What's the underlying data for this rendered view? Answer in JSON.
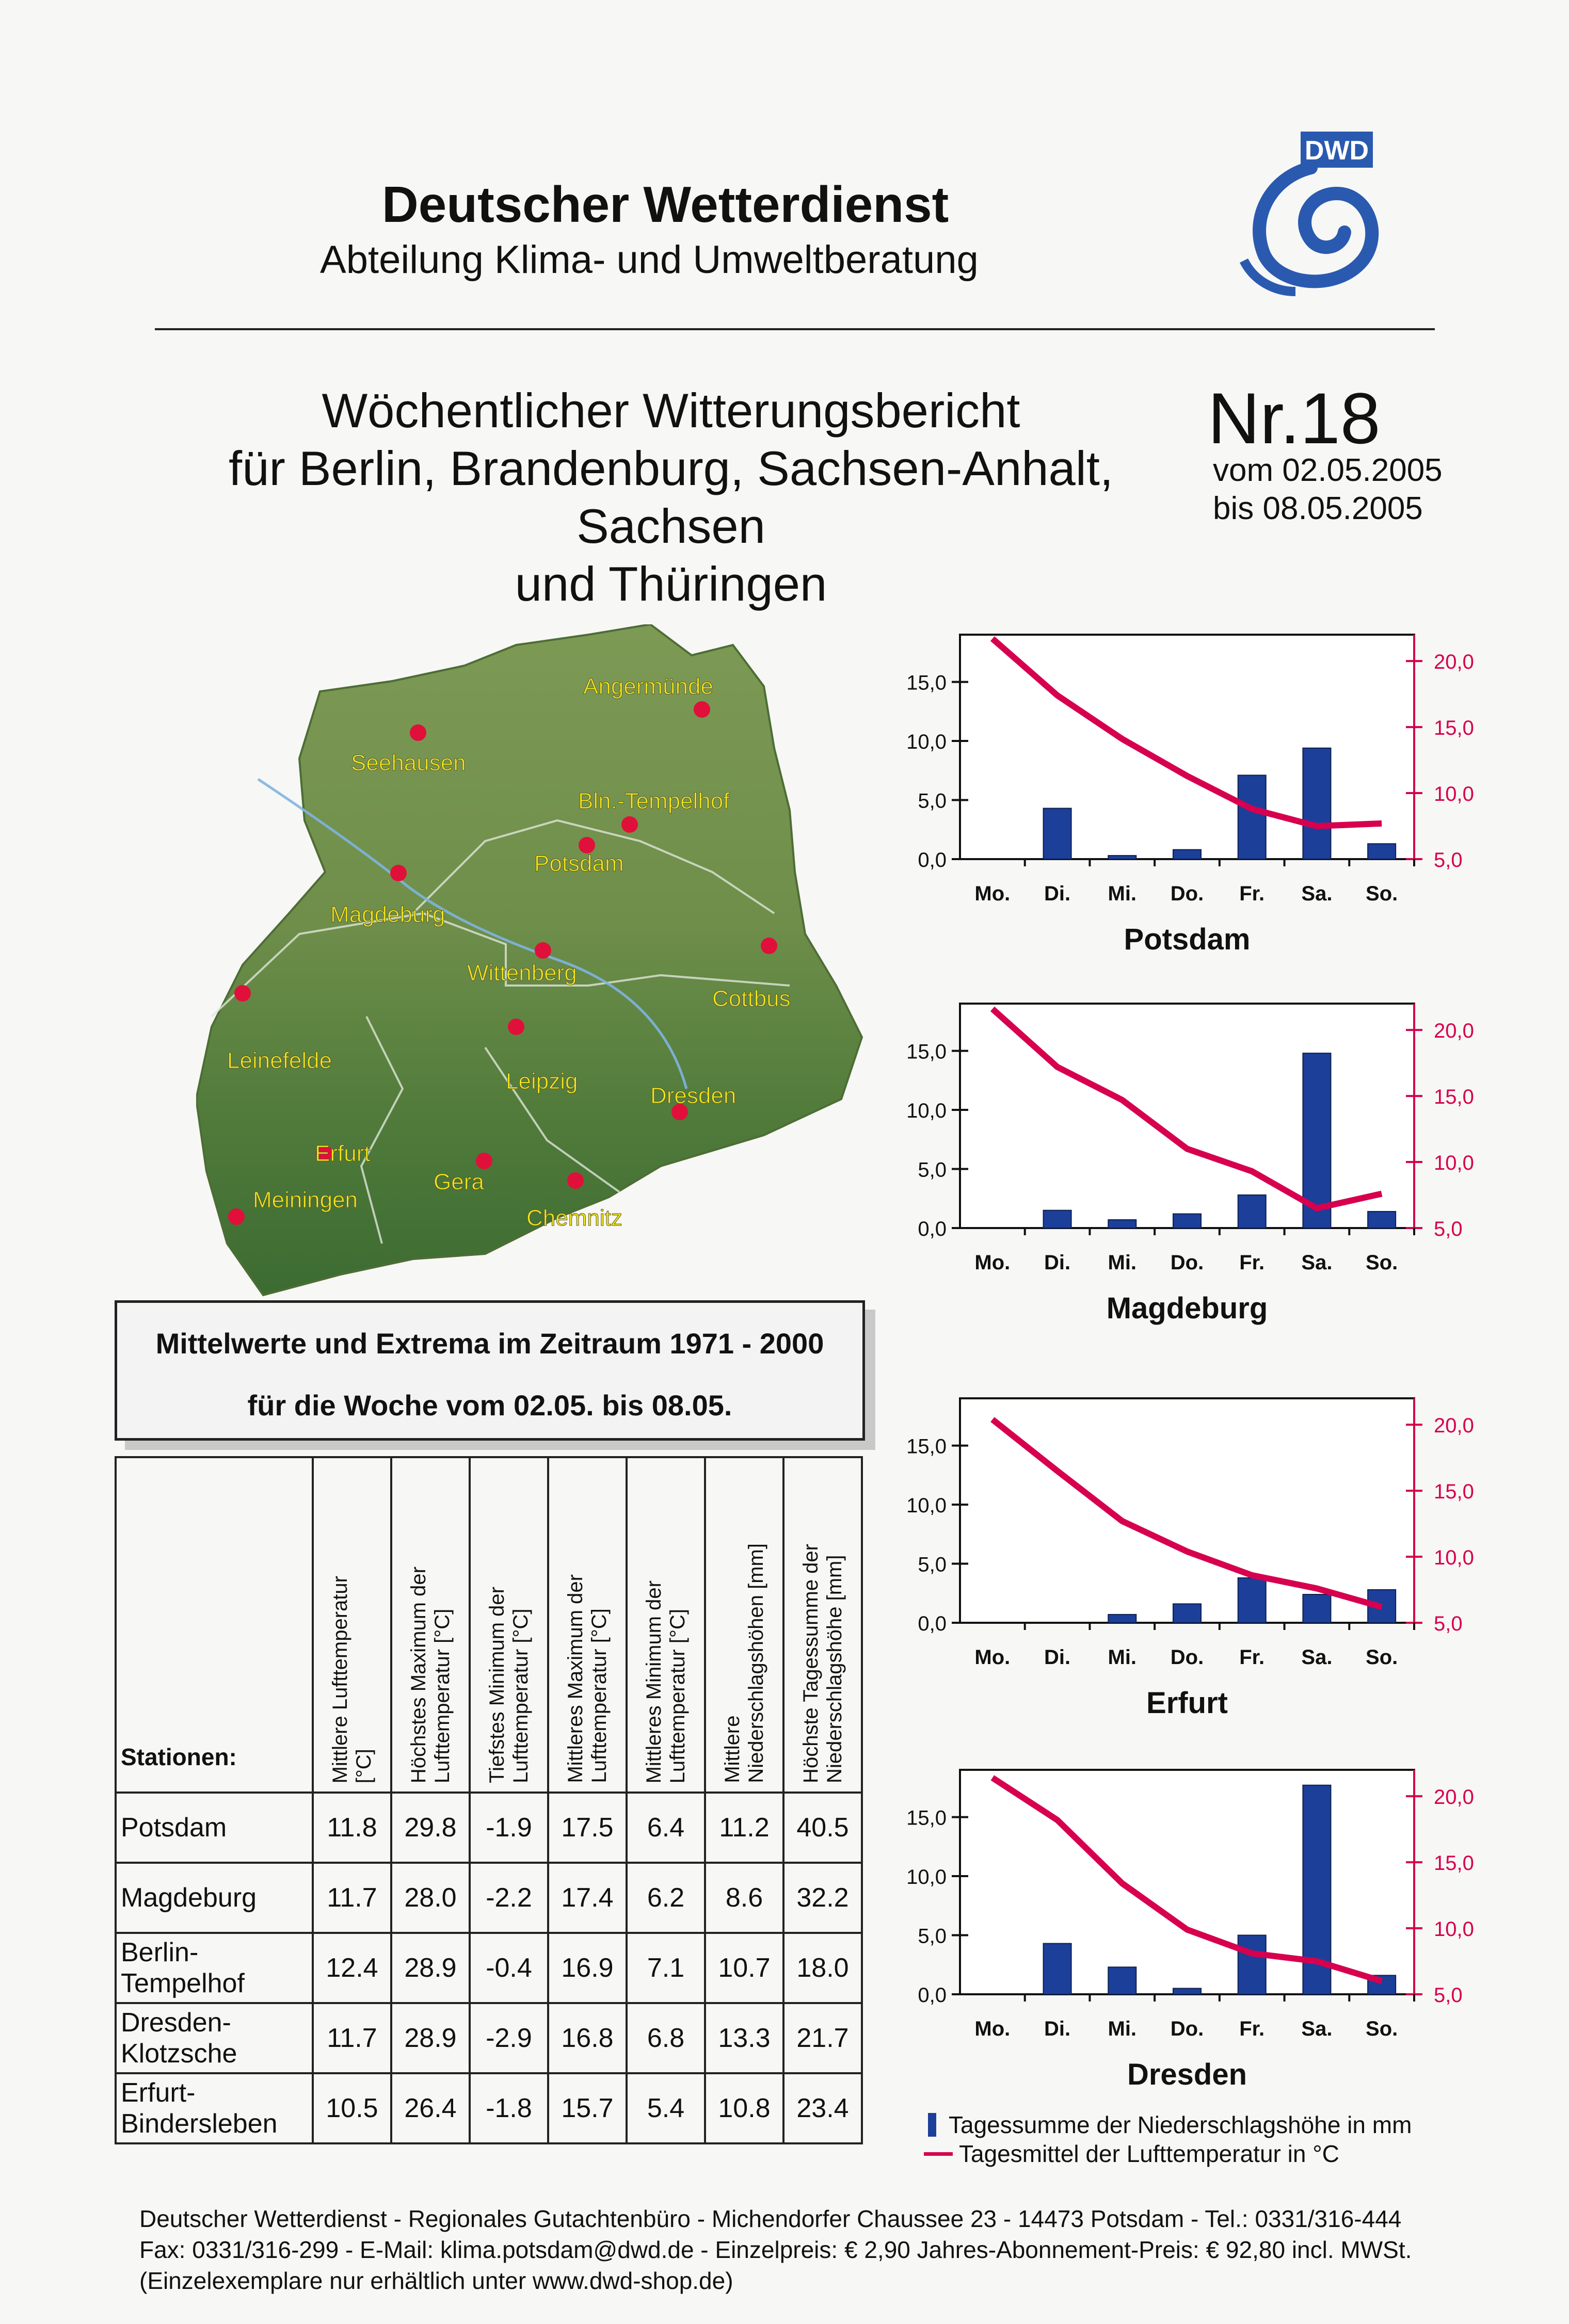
{
  "header": {
    "org": "Deutscher Wetterdienst",
    "department": "Abteilung Klima- und Umweltberatung",
    "logo_text": "DWD"
  },
  "report": {
    "title_line1": "Wöchentlicher Witterungsbericht",
    "title_line2": "für Berlin, Brandenburg, Sachsen-Anhalt, Sachsen",
    "title_line3": "und Thüringen",
    "number": "Nr.18",
    "date_from": "vom 02.05.2005",
    "date_to": "bis   08.05.2005"
  },
  "map": {
    "stations": [
      "Angermünde",
      "Seehausen",
      "Bln.-Tempelhof",
      "Potsdam",
      "Magdeburg",
      "Wittenberg",
      "Cottbus",
      "Leinefelde",
      "Leipzig",
      "Dresden",
      "Erfurt",
      "Gera",
      "Chemnitz",
      "Meiningen"
    ],
    "marker_color": "#e0103a",
    "label_color": "#f4e61a"
  },
  "stats": {
    "box_line1": "Mittelwerte und Extrema im Zeitraum 1971 - 2000",
    "box_line2": "für die Woche vom 02.05. bis 08.05.",
    "station_header": "Stationen:",
    "columns": [
      "Mittlere Lufttemperatur\n[°C]",
      "Höchstes Maximum der\nLufttemperatur [°C]",
      "Tiefstes Minimum der\nLufttemperatur [°C]",
      "Mittleres Maximum der\nLufttemperatur [°C]",
      "Mittleres Minimum der\nLufttemperatur [°C]",
      "Mittlere\nNiederschlagshöhen [mm]",
      "Höchste Tagessumme der\nNiederschlagshöhe [mm]"
    ],
    "rows": [
      {
        "station": "Potsdam",
        "values": [
          "11.8",
          "29.8",
          "-1.9",
          "17.5",
          "6.4",
          "11.2",
          "40.5"
        ]
      },
      {
        "station": "Magdeburg",
        "values": [
          "11.7",
          "28.0",
          "-2.2",
          "17.4",
          "6.2",
          "8.6",
          "32.2"
        ]
      },
      {
        "station": "Berlin-\nTempelhof",
        "values": [
          "12.4",
          "28.9",
          "-0.4",
          "16.9",
          "7.1",
          "10.7",
          "18.0"
        ]
      },
      {
        "station": "Dresden-\nKlotzsche",
        "values": [
          "11.7",
          "28.9",
          "-2.9",
          "16.8",
          "6.8",
          "13.3",
          "21.7"
        ]
      },
      {
        "station": "Erfurt-\nBindersleben",
        "values": [
          "10.5",
          "26.4",
          "-1.8",
          "15.7",
          "5.4",
          "10.8",
          "23.4"
        ]
      }
    ]
  },
  "chart_data": [
    {
      "type": "bar",
      "title": "Potsdam",
      "categories": [
        "Mo.",
        "Di.",
        "Mi.",
        "Do.",
        "Fr.",
        "Sa.",
        "So."
      ],
      "left_ticks": [
        "15,0",
        "10,0",
        "5,0",
        "0,0"
      ],
      "right_ticks": [
        "20,0",
        "15,0",
        "10,0",
        "5,0"
      ],
      "left_ylim": [
        0,
        19
      ],
      "right_ylim": [
        5,
        22
      ],
      "bar_color": "#1c3f9a",
      "line_color": "#d6004f",
      "series": [
        {
          "values": [
            0,
            4.3,
            0.3,
            0.8,
            7.1,
            9.4,
            1.3
          ]
        },
        {
          "values": [
            21.7,
            17.4,
            14.1,
            11.3,
            8.8,
            7.5,
            7.7
          ]
        }
      ]
    },
    {
      "type": "bar",
      "title": "Magdeburg",
      "categories": [
        "Mo.",
        "Di.",
        "Mi.",
        "Do.",
        "Fr.",
        "Sa.",
        "So."
      ],
      "left_ticks": [
        "15,0",
        "10,0",
        "5,0",
        "0,0"
      ],
      "right_ticks": [
        "20,0",
        "15,0",
        "10,0",
        "5,0"
      ],
      "left_ylim": [
        0,
        19
      ],
      "right_ylim": [
        5,
        22
      ],
      "bar_color": "#1c3f9a",
      "line_color": "#d6004f",
      "series": [
        {
          "values": [
            0,
            1.5,
            0.7,
            1.2,
            2.8,
            14.8,
            1.4
          ]
        },
        {
          "values": [
            21.6,
            17.2,
            14.7,
            11.0,
            9.3,
            6.5,
            7.6
          ]
        }
      ]
    },
    {
      "type": "bar",
      "title": "Erfurt",
      "categories": [
        "Mo.",
        "Di.",
        "Mi.",
        "Do.",
        "Fr.",
        "Sa.",
        "So."
      ],
      "left_ticks": [
        "15,0",
        "10,0",
        "5,0",
        "0,0"
      ],
      "right_ticks": [
        "20,0",
        "15,0",
        "10,0",
        "5,0"
      ],
      "left_ylim": [
        0,
        19
      ],
      "right_ylim": [
        5,
        22
      ],
      "bar_color": "#1c3f9a",
      "line_color": "#d6004f",
      "series": [
        {
          "values": [
            0,
            0,
            0.7,
            1.6,
            3.8,
            2.4,
            2.8
          ]
        },
        {
          "values": [
            20.4,
            16.5,
            12.7,
            10.4,
            8.6,
            7.6,
            6.2
          ]
        }
      ]
    },
    {
      "type": "bar",
      "title": "Dresden",
      "categories": [
        "Mo.",
        "Di.",
        "Mi.",
        "Do.",
        "Fr.",
        "Sa.",
        "So."
      ],
      "left_ticks": [
        "15,0",
        "10,0",
        "5,0",
        "0,0"
      ],
      "right_ticks": [
        "20,0",
        "15,0",
        "10,0",
        "5,0"
      ],
      "left_ylim": [
        0,
        19
      ],
      "right_ylim": [
        5,
        22
      ],
      "bar_color": "#1c3f9a",
      "line_color": "#d6004f",
      "series": [
        {
          "values": [
            0,
            4.3,
            2.3,
            0.5,
            5.0,
            17.7,
            1.6
          ]
        },
        {
          "values": [
            21.4,
            18.2,
            13.4,
            9.9,
            8.1,
            7.5,
            6.0
          ]
        }
      ]
    }
  ],
  "legend": {
    "bars": "Tagessumme der Niederschlagshöhe in mm",
    "line": "Tagesmittel der Lufttemperatur in °C"
  },
  "footer": {
    "line1": "Deutscher Wetterdienst - Regionales Gutachtenbüro - Michendorfer Chaussee 23 - 14473 Potsdam  -  Tel.: 0331/316-444",
    "line2": "Fax: 0331/316-299  -  E-Mail: klima.potsdam@dwd.de  -   Einzelpreis: € 2,90 Jahres-Abonnement-Preis: € 92,80 incl. MWSt.",
    "line3": "(Einzelexemplare nur erhältlich unter www.dwd-shop.de)"
  }
}
